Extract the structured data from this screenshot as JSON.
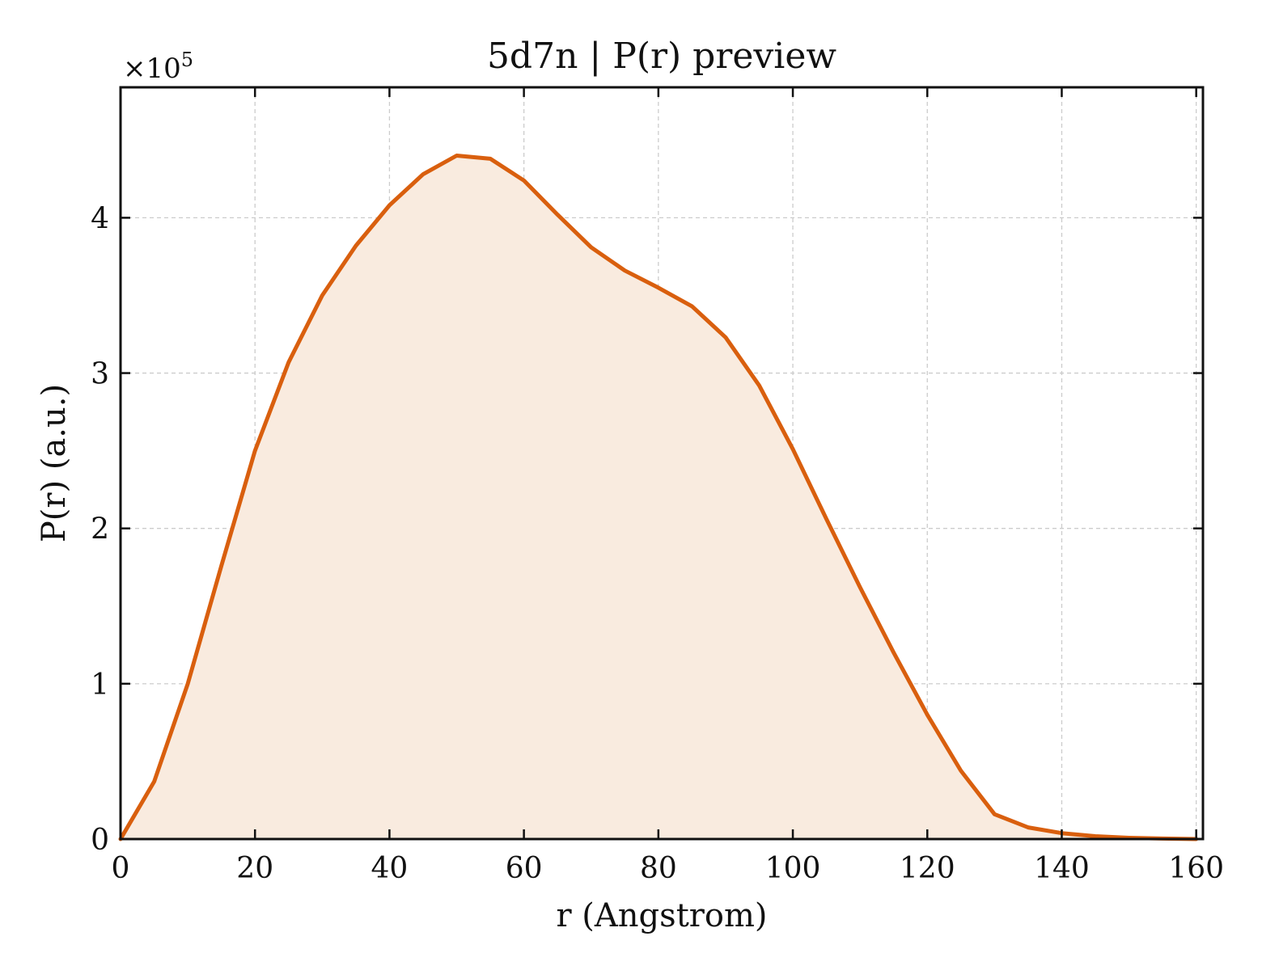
{
  "chart_data": {
    "type": "area",
    "title": "5d7n | P(r) preview",
    "xlabel": "r (Angstrom)",
    "ylabel": "P(r) (a.u.)",
    "y_scale_label": "×10",
    "y_scale_exponent": "5",
    "xlim": [
      0,
      161
    ],
    "ylim": [
      0,
      484000
    ],
    "x_ticks": [
      0,
      20,
      40,
      60,
      80,
      100,
      120,
      140,
      160
    ],
    "x_tick_labels": [
      "0",
      "20",
      "40",
      "60",
      "80",
      "100",
      "120",
      "140",
      "160"
    ],
    "y_ticks": [
      0,
      100000,
      200000,
      300000,
      400000
    ],
    "y_tick_labels": [
      "0",
      "1",
      "2",
      "3",
      "4"
    ],
    "grid": true,
    "series": [
      {
        "color": "#d95f0e",
        "fill_color": "#f9ebdf",
        "x": [
          0,
          5,
          10,
          15,
          20,
          25,
          30,
          35,
          40,
          45,
          50,
          55,
          60,
          65,
          70,
          75,
          80,
          85,
          90,
          95,
          100,
          105,
          110,
          115,
          120,
          125,
          130,
          135,
          140,
          145,
          150,
          155,
          160
        ],
        "y": [
          0,
          37000,
          100000,
          176000,
          250000,
          307000,
          350000,
          382000,
          408000,
          428000,
          440000,
          438000,
          424000,
          402000,
          381000,
          366000,
          355000,
          343000,
          323000,
          292000,
          251000,
          206000,
          162000,
          120000,
          80000,
          44000,
          16000,
          7500,
          3800,
          1800,
          800,
          300,
          0
        ]
      }
    ]
  }
}
